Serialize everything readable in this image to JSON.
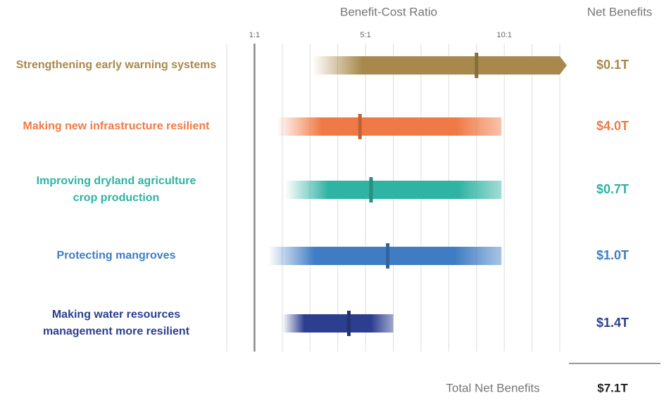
{
  "chart_data": {
    "type": "range",
    "title": "Benefit-Cost Ratio",
    "net_title": "Net Benefits",
    "xlim": [
      0,
      12
    ],
    "xticks": [
      {
        "value": 1,
        "label": "1:1"
      },
      {
        "value": 5,
        "label": "5:1"
      },
      {
        "value": 10,
        "label": "10:1"
      }
    ],
    "minor_xticks": [
      0,
      2,
      3,
      4,
      6,
      7,
      8,
      9,
      11,
      12
    ],
    "grid": true,
    "series": [
      {
        "name": [
          "Strengthening early warning systems"
        ],
        "color": "#a8894c",
        "low": 3.1,
        "high": 12,
        "value": 9,
        "arrow": true,
        "net": "$0.1T"
      },
      {
        "name": [
          "Making new infrastructure resilient"
        ],
        "color": "#f07a45",
        "low": 1.8,
        "high": 9.9,
        "value": 4.8,
        "net": "$4.0T"
      },
      {
        "name": [
          "Improving dryland agriculture",
          "crop production"
        ],
        "color": "#2fb3a3",
        "low": 2.1,
        "high": 9.9,
        "value": 5.2,
        "net": "$0.7T"
      },
      {
        "name": [
          "Protecting mangroves"
        ],
        "color": "#3f7cc4",
        "low": 1.5,
        "high": 9.9,
        "value": 5.8,
        "net": "$1.0T"
      },
      {
        "name": [
          "Making water resources",
          "management more resilient"
        ],
        "color": "#2c3e8f",
        "low": 2,
        "high": 6,
        "value": 4.4,
        "net": "$1.4T"
      }
    ],
    "total_label": "Total Net Benefits",
    "total": "$7.1T"
  }
}
